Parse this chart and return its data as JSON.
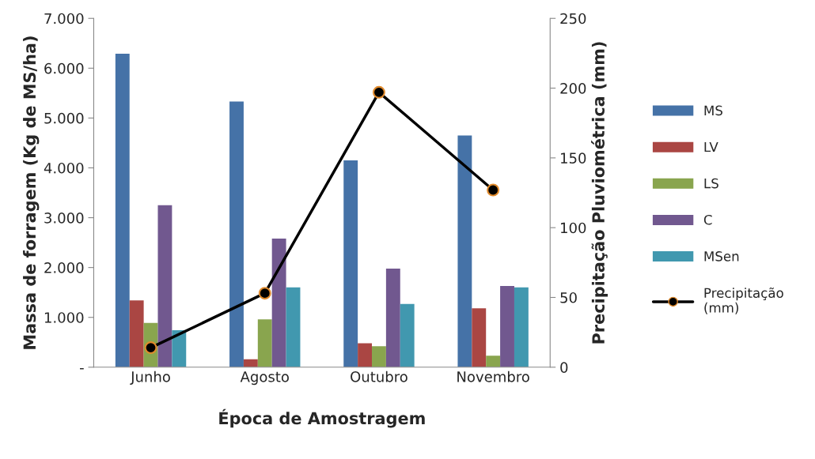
{
  "chart_data": {
    "type": "bar",
    "categories": [
      "Junho",
      "Agosto",
      "Outubro",
      "Novembro"
    ],
    "xlabel": "Época de Amostragem",
    "ylabel": "Massa de forragem (Kg de MS/ha)",
    "y2label": "Precipitação Pluviométrica (mm)",
    "series": [
      {
        "name": "MS",
        "color": "#4572a7",
        "values": [
          6290,
          5330,
          4150,
          4650
        ]
      },
      {
        "name": "LV",
        "color": "#aa4643",
        "values": [
          1340,
          160,
          480,
          1180
        ]
      },
      {
        "name": "LS",
        "color": "#89a54e",
        "values": [
          890,
          960,
          420,
          230
        ]
      },
      {
        "name": "C",
        "color": "#71588f",
        "values": [
          3250,
          2580,
          1980,
          1630
        ]
      },
      {
        "name": "MSen",
        "color": "#4198af",
        "values": [
          740,
          1600,
          1270,
          1600
        ]
      },
      {
        "name": "Precipitação (mm)",
        "type": "line",
        "axis": "y2",
        "color": "#000000",
        "marker": "circle",
        "values": [
          14,
          53,
          197,
          127
        ]
      }
    ],
    "ylim": [
      0,
      7000
    ],
    "yticks": [
      {
        "value": 0,
        "label": "-"
      },
      {
        "value": 1000,
        "label": "1.000"
      },
      {
        "value": 2000,
        "label": "2.000"
      },
      {
        "value": 3000,
        "label": "3.000"
      },
      {
        "value": 4000,
        "label": "4.000"
      },
      {
        "value": 5000,
        "label": "5.000"
      },
      {
        "value": 6000,
        "label": "6.000"
      },
      {
        "value": 7000,
        "label": "7.000"
      }
    ],
    "y2lim": [
      0,
      250
    ],
    "y2ticks": [
      0,
      50,
      100,
      150,
      200,
      250
    ],
    "grid": false,
    "legend": "right"
  }
}
